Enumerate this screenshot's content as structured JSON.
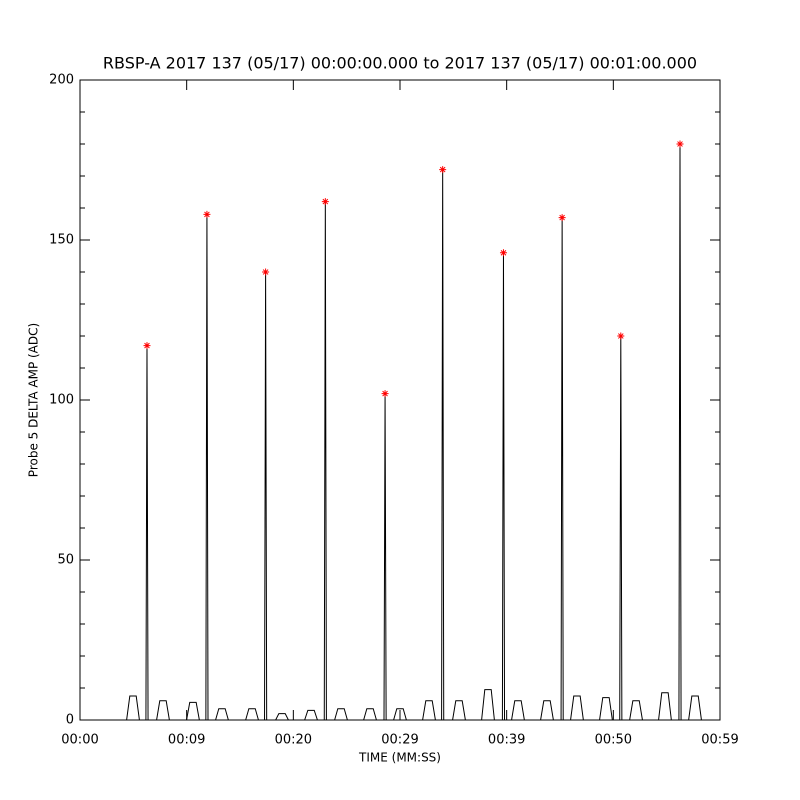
{
  "chart_data": {
    "type": "line",
    "title": "RBSP-A 2017 137 (05/17) 00:00:00.000 to 2017 137 (05/17) 00:01:00.000",
    "x_label": "TIME (MM:SS)",
    "y_label": "Probe 5 DELTA AMP (ADC)",
    "xlim": [
      0,
      60
    ],
    "xticks": [
      {
        "value": 0,
        "label": "00:00"
      },
      {
        "value": 10,
        "label": "00:09"
      },
      {
        "value": 20,
        "label": "00:20"
      },
      {
        "value": 30,
        "label": "00:29"
      },
      {
        "value": 40,
        "label": "00:39"
      },
      {
        "value": 50,
        "label": "00:50"
      },
      {
        "value": 60,
        "label": "00:59"
      }
    ],
    "ylim": [
      0,
      200
    ],
    "yticks": [
      0,
      50,
      100,
      150,
      200
    ],
    "yminorticks": [
      10,
      20,
      30,
      40,
      60,
      70,
      80,
      90,
      110,
      120,
      130,
      140,
      160,
      170,
      180,
      190
    ],
    "series": [
      {
        "color": "#000000",
        "mode": "line",
        "x": [
          0,
          4.37,
          4.67,
          5.27,
          5.57,
          6.18,
          6.28,
          6.38,
          7.18,
          7.48,
          8.08,
          8.38,
          9.99,
          10.29,
          10.89,
          11.19,
          11.8,
          11.9,
          12.0,
          12.71,
          13.01,
          13.61,
          13.91,
          15.53,
          15.83,
          16.43,
          16.73,
          17.3,
          17.4,
          17.5,
          18.34,
          18.64,
          19.24,
          19.54,
          21.06,
          21.36,
          21.96,
          22.26,
          22.9,
          23.0,
          23.1,
          23.87,
          24.17,
          24.77,
          25.07,
          26.59,
          26.89,
          27.49,
          27.79,
          28.5,
          28.6,
          28.7,
          29.4,
          29.7,
          30.3,
          30.6,
          32.12,
          32.42,
          33.02,
          33.32,
          33.9,
          34.0,
          34.1,
          34.93,
          35.23,
          35.83,
          36.13,
          37.65,
          37.95,
          38.55,
          38.85,
          39.6,
          39.7,
          39.8,
          40.46,
          40.76,
          41.36,
          41.66,
          43.18,
          43.48,
          44.08,
          44.38,
          45.1,
          45.2,
          45.3,
          45.99,
          46.29,
          46.89,
          47.19,
          48.71,
          49.01,
          49.61,
          49.91,
          50.6,
          50.7,
          50.8,
          51.53,
          51.83,
          52.43,
          52.73,
          54.24,
          54.54,
          55.14,
          55.44,
          56.15,
          56.25,
          56.35,
          57.06,
          57.36,
          57.96,
          58.26,
          60
        ],
        "values": [
          0,
          0,
          7.5,
          7.5,
          0,
          0,
          117,
          0,
          0,
          6,
          6,
          0,
          0,
          5.5,
          5.5,
          0,
          0,
          158,
          0,
          0,
          3.5,
          3.5,
          0,
          0,
          3.5,
          3.5,
          0,
          0,
          140,
          0,
          0,
          2,
          2,
          0,
          0,
          3,
          3,
          0,
          0,
          162,
          0,
          0,
          3.5,
          3.5,
          0,
          0,
          3.5,
          3.5,
          0,
          0,
          102,
          0,
          0,
          3.5,
          3.5,
          0,
          0,
          6,
          6,
          0,
          0,
          172,
          0,
          0,
          6,
          6,
          0,
          0,
          9.5,
          9.5,
          0,
          0,
          146,
          0,
          0,
          6,
          6,
          0,
          0,
          6,
          6,
          0,
          0,
          157,
          0,
          0,
          7.5,
          7.5,
          0,
          0,
          7,
          7,
          0,
          0,
          120,
          0,
          0,
          6,
          6,
          0,
          0,
          8.5,
          8.5,
          0,
          0,
          180,
          0,
          0,
          7.5,
          7.5,
          0,
          0
        ]
      },
      {
        "color": "#ff0000",
        "mode": "markers",
        "marker": "asterisk",
        "x": [
          6.28,
          11.9,
          17.4,
          23.0,
          28.6,
          34.0,
          39.7,
          45.2,
          50.7,
          56.25
        ],
        "values": [
          117,
          158,
          140,
          162,
          102,
          172,
          146,
          157,
          120,
          180
        ]
      }
    ]
  }
}
